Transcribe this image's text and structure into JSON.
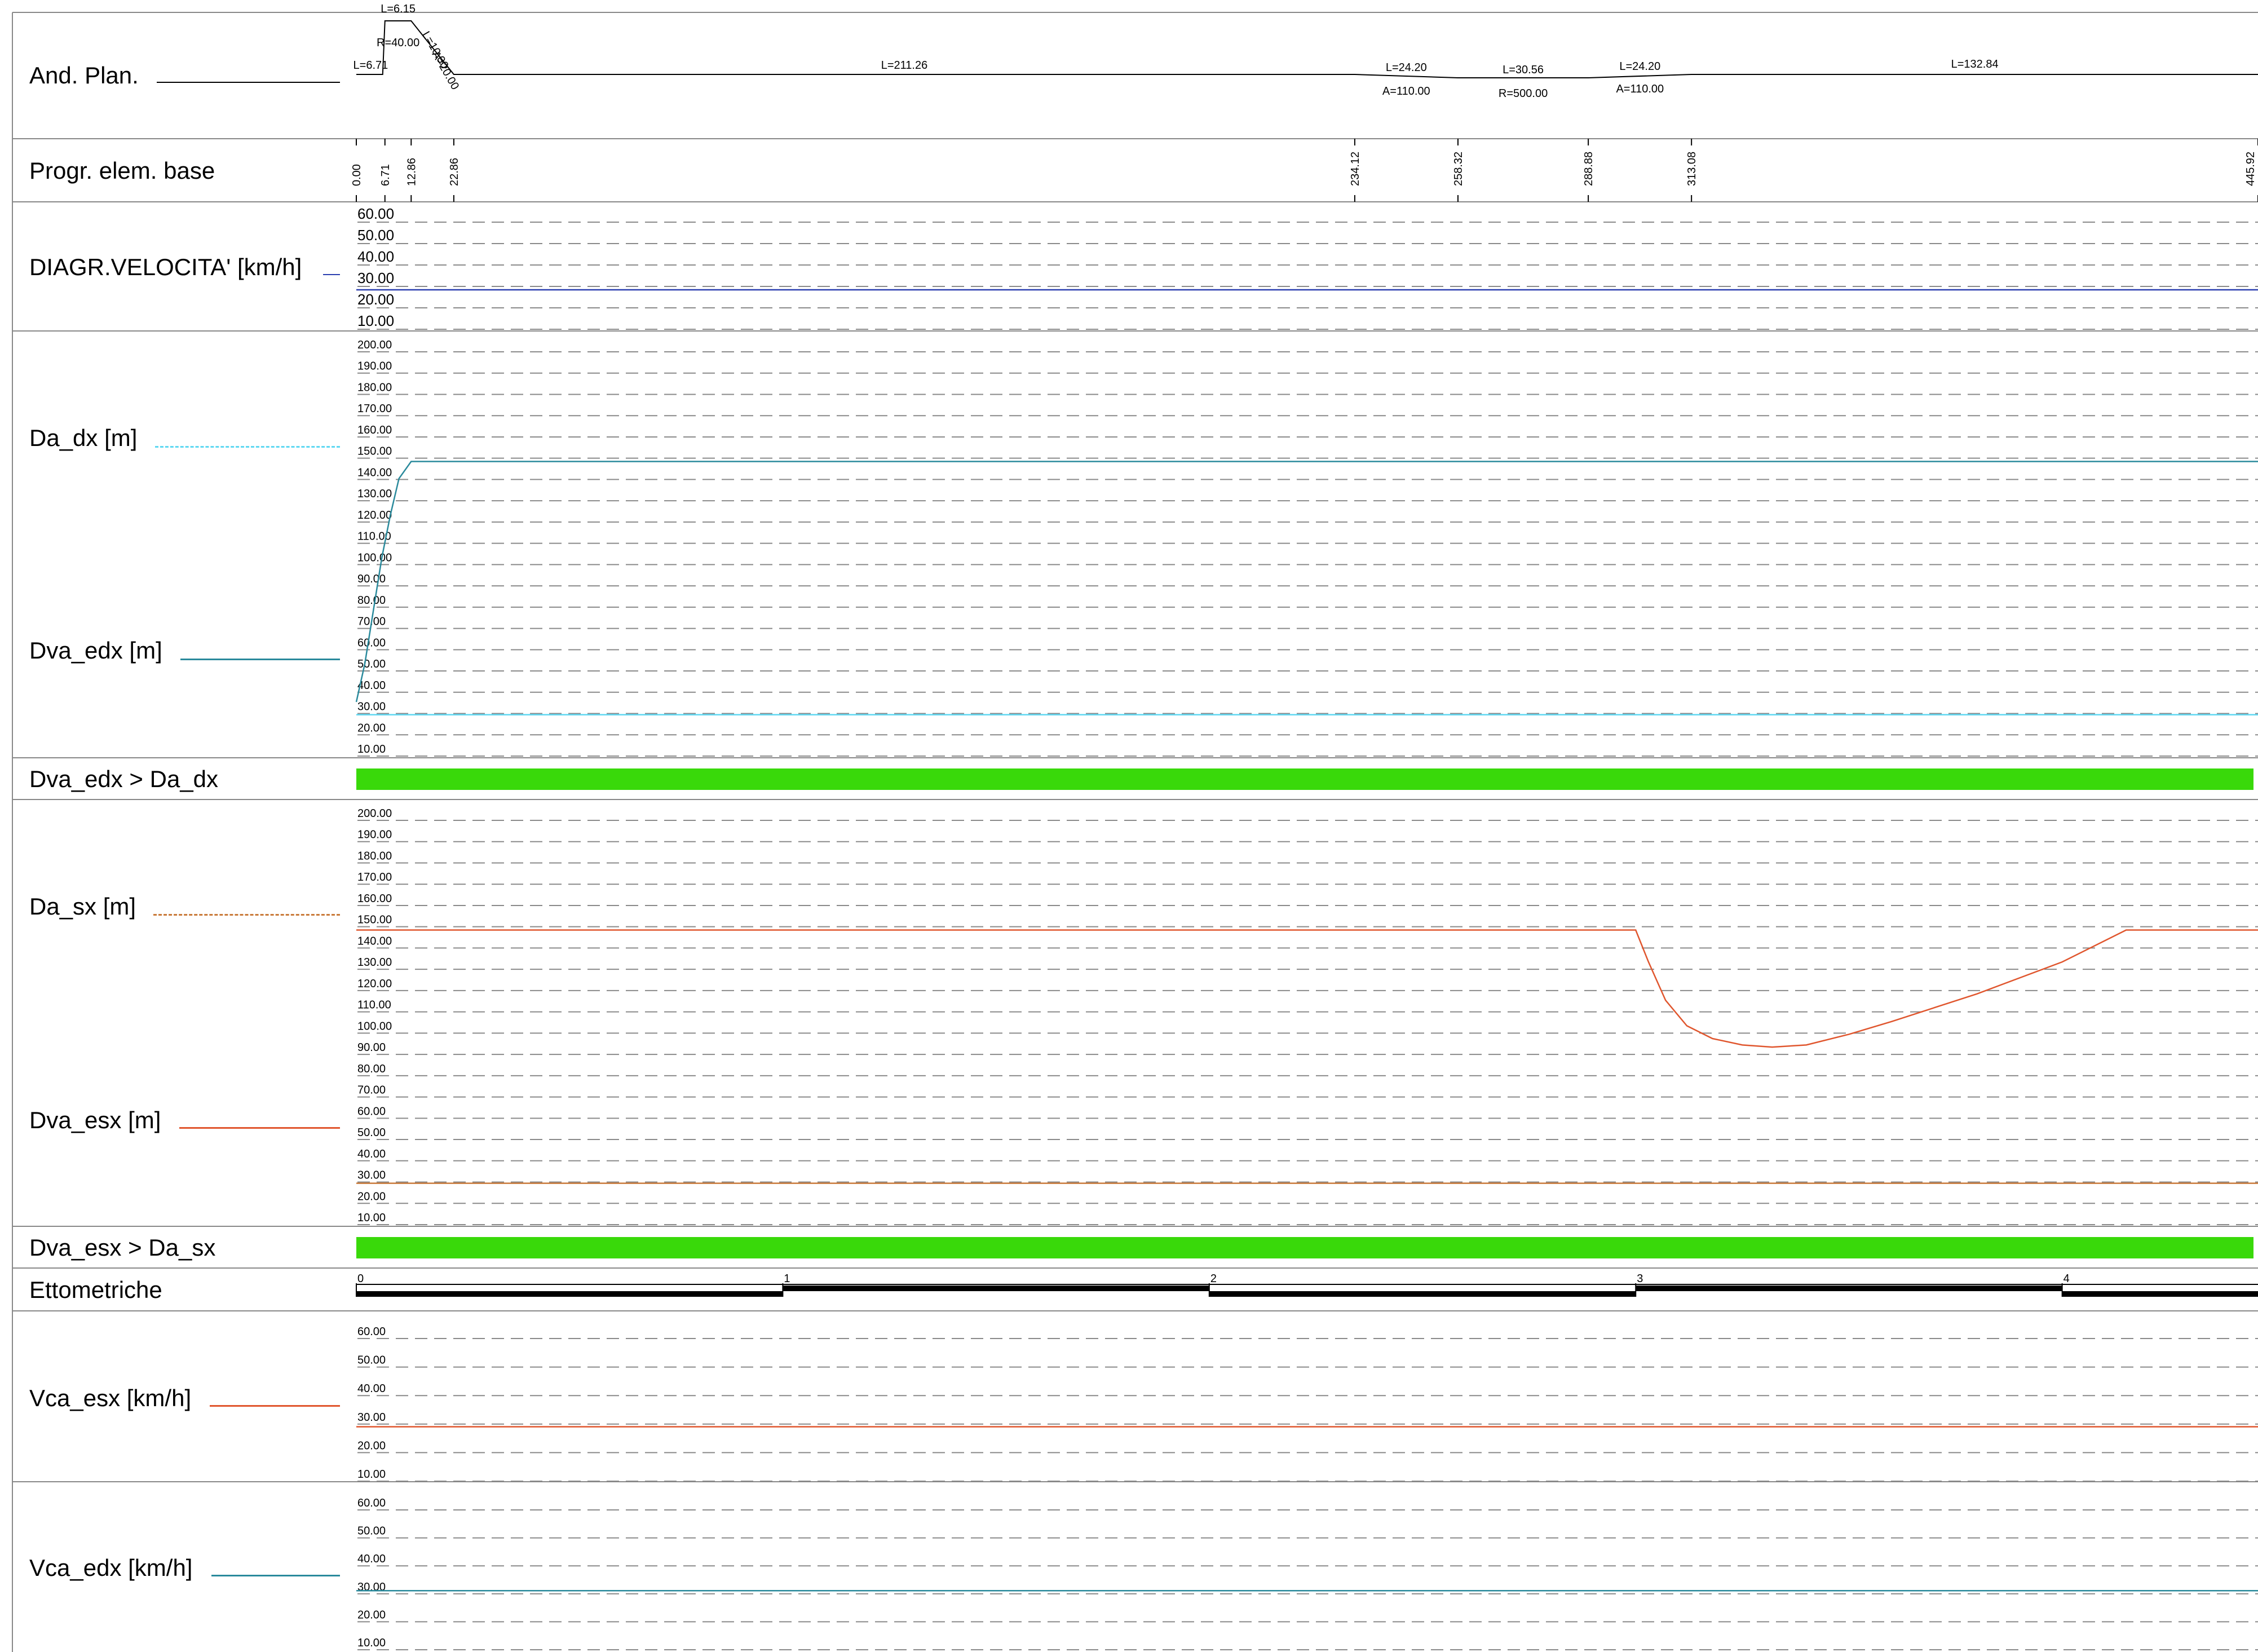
{
  "rows": {
    "and_plan": "And. Plan.",
    "progr": "Progr. elem. base",
    "velocita": "DIAGR.VELOCITA' [km/h]",
    "da_dx": "Da_dx [m]",
    "dva_edx": "Dva_edx [m]",
    "check_dx": "Dva_edx > Da_dx",
    "da_sx": "Da_sx [m]",
    "dva_esx": "Dva_esx [m]",
    "check_sx": "Dva_esx > Da_sx",
    "ettometriche": "Ettometriche",
    "vca_esx": "Vca_esx [km/h]",
    "vca_edx": "Vca_edx [km/h]"
  },
  "colors": {
    "velocita": "#2b3fb0",
    "da_dx": "#5fd8f2",
    "dva_edx": "#2a8a9c",
    "da_sx": "#c97a3a",
    "dva_esx": "#e0562e",
    "check_fill": "#39d90a",
    "grid": "#8a8a8a"
  },
  "chart_data": {
    "type": "line",
    "x_range": [
      0,
      445.92
    ],
    "plan": [
      {
        "label": "L=6.71",
        "from": 0,
        "to": 6.71
      },
      {
        "label": "L=6.15",
        "sub": "R=40.00",
        "from": 6.71,
        "to": 12.86
      },
      {
        "label": "L=10.00",
        "sub": "A=20.00",
        "from": 12.86,
        "to": 22.86
      },
      {
        "label": "L=211.26",
        "from": 22.86,
        "to": 234.12
      },
      {
        "label": "L=24.20",
        "sub": "A=110.00",
        "from": 234.12,
        "to": 258.32
      },
      {
        "label": "L=30.56",
        "sub": "R=500.00",
        "from": 258.32,
        "to": 288.88
      },
      {
        "label": "L=24.20",
        "sub": "A=110.00",
        "from": 288.88,
        "to": 313.08
      },
      {
        "label": "L=132.84",
        "from": 313.08,
        "to": 445.92
      }
    ],
    "progressive_labels": [
      "0.00",
      "6.71",
      "12.86",
      "22.86",
      "234.12",
      "258.32",
      "288.88",
      "313.08",
      "445.92"
    ],
    "progressive_values": [
      0,
      6.71,
      12.86,
      22.86,
      234.12,
      258.32,
      288.88,
      313.08,
      445.92
    ],
    "panels": [
      {
        "id": "velocita",
        "ticks": [
          "60.00",
          "50.00",
          "40.00",
          "30.00",
          "20.00",
          "10.00"
        ],
        "ylim": [
          10,
          60
        ],
        "series": [
          {
            "name": "DIAGR.VELOCITA' [km/h]",
            "color_key": "velocita",
            "x": [
              0,
              445.92
            ],
            "y": [
              25,
              25
            ]
          }
        ]
      },
      {
        "id": "dx",
        "ticks": [
          "200.00",
          "190.00",
          "180.00",
          "170.00",
          "160.00",
          "150.00",
          "140.00",
          "130.00",
          "120.00",
          "110.00",
          "100.00",
          "90.00",
          "80.00",
          "70.00",
          "60.00",
          "50.00",
          "40.00",
          "30.00",
          "20.00",
          "10.00"
        ],
        "ylim": [
          10,
          200
        ],
        "series": [
          {
            "name": "Da_dx [m]",
            "color_key": "da_dx",
            "x": [
              0,
              445.92
            ],
            "y": [
              26,
              26
            ]
          },
          {
            "name": "Dva_edx [m]",
            "color_key": "dva_edx",
            "x": [
              0,
              2,
              4,
              6,
              8,
              10,
              12.86,
              445.92
            ],
            "y": [
              32,
              50,
              75,
              100,
              120,
              137,
              145,
              145
            ]
          }
        ]
      },
      {
        "id": "sx",
        "ticks": [
          "200.00",
          "190.00",
          "180.00",
          "170.00",
          "160.00",
          "150.00",
          "140.00",
          "130.00",
          "120.00",
          "110.00",
          "100.00",
          "90.00",
          "80.00",
          "70.00",
          "60.00",
          "50.00",
          "40.00",
          "30.00",
          "20.00",
          "10.00"
        ],
        "ylim": [
          10,
          200
        ],
        "series": [
          {
            "name": "Da_sx [m]",
            "color_key": "da_sx",
            "x": [
              0,
              445.92
            ],
            "y": [
              26,
              26
            ]
          },
          {
            "name": "Dva_esx [m]",
            "color_key": "dva_esx",
            "x": [
              0,
              300,
              303,
              307,
              312,
              318,
              325,
              332,
              340,
              350,
              360,
              380,
              400,
              415,
              445.92
            ],
            "y": [
              145,
              145,
              130,
              112,
              100,
              94,
              91,
              90,
              91,
              96,
              102,
              115,
              130,
              145,
              145
            ]
          }
        ]
      },
      {
        "id": "vca_esx",
        "ticks": [
          "60.00",
          "50.00",
          "40.00",
          "30.00",
          "20.00",
          "10.00"
        ],
        "ylim": [
          10,
          60
        ],
        "series": [
          {
            "name": "Vca_esx [km/h]",
            "color_key": "dva_esx",
            "x": [
              0,
              445.92
            ],
            "y": [
              26.5,
              26.5
            ]
          }
        ]
      },
      {
        "id": "vca_edx",
        "ticks": [
          "60.00",
          "50.00",
          "40.00",
          "30.00",
          "20.00",
          "10.00"
        ],
        "ylim": [
          10,
          60
        ],
        "series": [
          {
            "name": "Vca_edx [km/h]",
            "color_key": "dva_edx",
            "x": [
              0,
              445.92
            ],
            "y": [
              28.5,
              28.5
            ]
          }
        ]
      }
    ],
    "checks": [
      {
        "name": "Dva_edx > Da_dx",
        "from": 0,
        "to": 445.92,
        "passed": true
      },
      {
        "name": "Dva_esx > Da_sx",
        "from": 0,
        "to": 445.92,
        "passed": true
      }
    ],
    "ettometriche": {
      "labels": [
        "0",
        "1",
        "2",
        "3",
        "4"
      ],
      "values": [
        0,
        100,
        200,
        300,
        400
      ]
    }
  }
}
